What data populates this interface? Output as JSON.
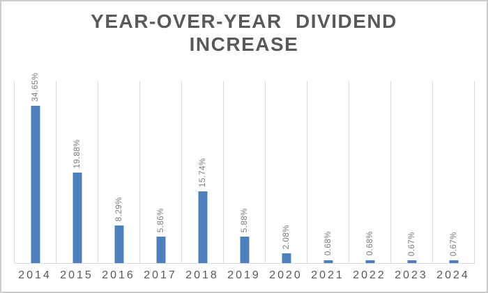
{
  "window": {
    "background": "#ffffff",
    "border_color": "#cdcdcd"
  },
  "chart_data": {
    "type": "bar",
    "title": "YEAR-OVER-YEAR DIVIDEND INCREASE",
    "title_lines": [
      "YEAR-OVER-YEAR DIVIDEND",
      "INCREASE"
    ],
    "categories": [
      "2014",
      "2015",
      "2016",
      "2017",
      "2018",
      "2019",
      "2020",
      "2021",
      "2022",
      "2023",
      "2024"
    ],
    "values": [
      34.65,
      19.88,
      8.29,
      5.86,
      15.74,
      5.88,
      2.08,
      0.68,
      0.68,
      0.67,
      0.67
    ],
    "value_labels": [
      "34.65%",
      "19.88%",
      "8.29%",
      "5.86%",
      "15.74%",
      "5.88%",
      "2.08%",
      "0.68%",
      "0.68%",
      "0.67%",
      "0.67%"
    ],
    "xlabel": "",
    "ylabel": "",
    "ylim": [
      0,
      40
    ],
    "grid": "vertical-category-separators",
    "legend": "none",
    "data_label_rotation": "vertical-bottom-to-top",
    "colors": {
      "bar": "#4e80bc",
      "gridline": "#d9d9d9",
      "axis_line": "#d9d9d9",
      "data_label": "#7a7a7a",
      "tick_label": "#595959",
      "title": "#595959"
    }
  }
}
